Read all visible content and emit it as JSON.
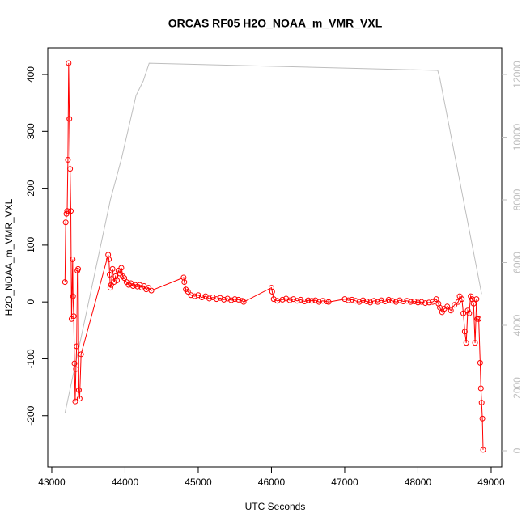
{
  "chart_data": {
    "type": "line",
    "title": "ORCAS RF05 H2O_NOAA_m_VMR_VXL",
    "x_label": "UTC Seconds",
    "y_label": "H2O_NOAA_m_VMR_VXL",
    "xlim": [
      42945,
      49144
    ],
    "xticks": [
      43000,
      44000,
      45000,
      46000,
      47000,
      48000,
      49000
    ],
    "ylim": [
      -290,
      447
    ],
    "yticks": [
      -200,
      -100,
      0,
      100,
      200,
      300,
      400
    ],
    "y2lim": [
      -516,
      12852
    ],
    "y2ticks": [
      0,
      2000,
      4000,
      6000,
      8000,
      10000,
      12000
    ],
    "series": [
      {
        "color": "#ff0000",
        "markers": true,
        "x": [
          43180,
          43190,
          43200,
          43210,
          43220,
          43230,
          43240,
          43250,
          43260,
          43270,
          43285,
          43290,
          43300,
          43310,
          43320,
          43330,
          43340,
          43350,
          43360,
          43370,
          43380,
          43400,
          43770,
          43780,
          43790,
          43800,
          43810,
          43830,
          43850,
          43870,
          43890,
          43910,
          43930,
          43950,
          43970,
          43990,
          44020,
          44050,
          44080,
          44110,
          44140,
          44170,
          44200,
          44230,
          44260,
          44290,
          44320,
          44360,
          44800,
          44810,
          44830,
          44860,
          44900,
          44950,
          45000,
          45050,
          45100,
          45150,
          45200,
          45250,
          45300,
          45350,
          45400,
          45450,
          45500,
          45550,
          45600,
          45620,
          46000,
          46010,
          46030,
          46080,
          46150,
          46200,
          46250,
          46300,
          46350,
          46400,
          46450,
          46500,
          46550,
          46600,
          46650,
          46700,
          46750,
          46780,
          47000,
          47050,
          47100,
          47150,
          47200,
          47250,
          47300,
          47350,
          47400,
          47450,
          47500,
          47550,
          47600,
          47650,
          47700,
          47750,
          47800,
          47850,
          47900,
          47950,
          48000,
          48050,
          48100,
          48150,
          48200,
          48250,
          48280,
          48300,
          48330,
          48360,
          48400,
          48450,
          48500,
          48550,
          48570,
          48600,
          48620,
          48640,
          48660,
          48680,
          48700,
          48720,
          48740,
          48760,
          48780,
          48800,
          48810,
          48830,
          48850,
          48860,
          48870,
          48880,
          48890
        ],
        "values": [
          35,
          140,
          155,
          160,
          250,
          420,
          322,
          234,
          160,
          -30,
          75,
          10,
          -25,
          -108,
          -175,
          -118,
          -78,
          55,
          58,
          -155,
          -170,
          -92,
          83,
          75,
          48,
          25,
          30,
          58,
          35,
          45,
          38,
          55,
          50,
          60,
          45,
          42,
          35,
          30,
          33,
          28,
          30,
          27,
          30,
          25,
          28,
          22,
          25,
          20,
          43,
          35,
          22,
          18,
          12,
          10,
          12,
          8,
          10,
          6,
          8,
          5,
          7,
          4,
          6,
          3,
          5,
          4,
          2,
          0,
          25,
          18,
          5,
          2,
          4,
          6,
          3,
          5,
          2,
          4,
          1,
          3,
          2,
          3,
          0,
          2,
          1,
          0,
          5,
          3,
          4,
          2,
          0,
          3,
          1,
          -1,
          2,
          0,
          3,
          1,
          4,
          2,
          0,
          3,
          1,
          2,
          0,
          1,
          -1,
          0,
          -2,
          -1,
          0,
          5,
          -3,
          -10,
          -18,
          -12,
          -8,
          -15,
          -5,
          0,
          10,
          5,
          -20,
          -52,
          -72,
          -15,
          -20,
          10,
          5,
          -3,
          -72,
          5,
          -30,
          -30,
          -107,
          -152,
          -177,
          -205,
          -260
        ]
      },
      {
        "color": "#bebebe",
        "axis": "y2",
        "markers": false,
        "x": [
          43180,
          43800,
          43950,
          44150,
          44250,
          44330,
          48270,
          48300,
          48870
        ],
        "values": [
          1200,
          8000,
          9300,
          11330,
          11800,
          12360,
          12130,
          11870,
          5000
        ]
      }
    ]
  }
}
